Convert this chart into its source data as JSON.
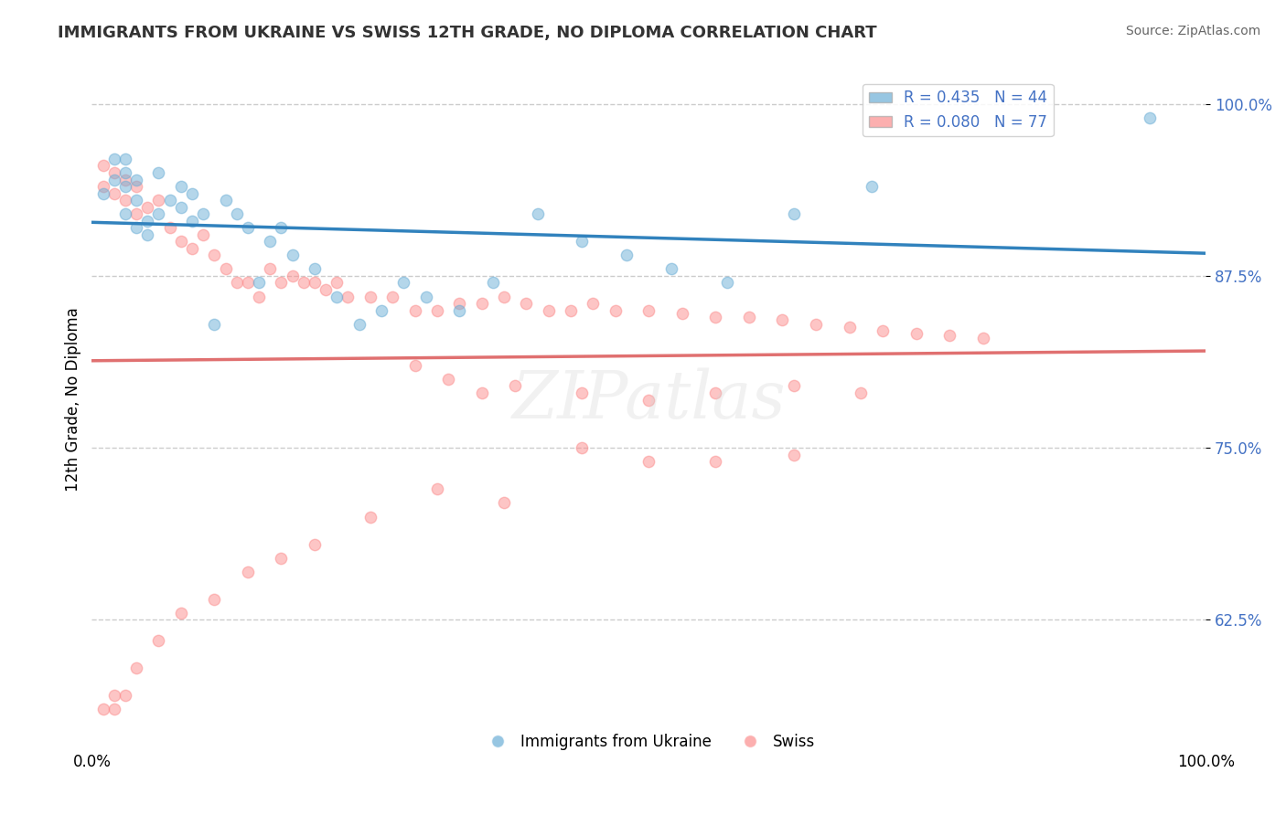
{
  "title": "IMMIGRANTS FROM UKRAINE VS SWISS 12TH GRADE, NO DIPLOMA CORRELATION CHART",
  "source": "Source: ZipAtlas.com",
  "ylabel": "12th Grade, No Diploma",
  "xlim": [
    0.0,
    1.0
  ],
  "ylim": [
    0.54,
    1.03
  ],
  "yticks": [
    0.625,
    0.75,
    0.875,
    1.0
  ],
  "ytick_labels": [
    "62.5%",
    "75.0%",
    "87.5%",
    "100.0%"
  ],
  "legend_ukraine": "Immigrants from Ukraine",
  "legend_swiss": "Swiss",
  "ukraine_R": 0.435,
  "ukraine_N": 44,
  "swiss_R": 0.08,
  "swiss_N": 77,
  "ukraine_color": "#6baed6",
  "swiss_color": "#fc8d8d",
  "ukraine_line_color": "#3182bd",
  "swiss_line_color": "#e07070",
  "dot_size": 80,
  "dot_alpha": 0.5,
  "ukraine_x": [
    0.01,
    0.02,
    0.02,
    0.03,
    0.03,
    0.03,
    0.03,
    0.04,
    0.04,
    0.04,
    0.05,
    0.05,
    0.06,
    0.06,
    0.07,
    0.08,
    0.08,
    0.09,
    0.09,
    0.1,
    0.11,
    0.12,
    0.13,
    0.14,
    0.15,
    0.16,
    0.17,
    0.18,
    0.2,
    0.22,
    0.24,
    0.26,
    0.28,
    0.3,
    0.33,
    0.36,
    0.4,
    0.44,
    0.48,
    0.52,
    0.57,
    0.63,
    0.7,
    0.95
  ],
  "ukraine_y": [
    0.935,
    0.945,
    0.96,
    0.95,
    0.96,
    0.94,
    0.92,
    0.93,
    0.945,
    0.91,
    0.915,
    0.905,
    0.92,
    0.95,
    0.93,
    0.925,
    0.94,
    0.915,
    0.935,
    0.92,
    0.84,
    0.93,
    0.92,
    0.91,
    0.87,
    0.9,
    0.91,
    0.89,
    0.88,
    0.86,
    0.84,
    0.85,
    0.87,
    0.86,
    0.85,
    0.87,
    0.92,
    0.9,
    0.89,
    0.88,
    0.87,
    0.92,
    0.94,
    0.99
  ],
  "swiss_x": [
    0.01,
    0.01,
    0.02,
    0.02,
    0.03,
    0.03,
    0.04,
    0.04,
    0.05,
    0.06,
    0.07,
    0.08,
    0.09,
    0.1,
    0.11,
    0.12,
    0.13,
    0.14,
    0.15,
    0.16,
    0.17,
    0.18,
    0.19,
    0.2,
    0.21,
    0.22,
    0.23,
    0.25,
    0.27,
    0.29,
    0.31,
    0.33,
    0.35,
    0.37,
    0.39,
    0.41,
    0.43,
    0.45,
    0.47,
    0.5,
    0.53,
    0.56,
    0.59,
    0.62,
    0.65,
    0.68,
    0.71,
    0.74,
    0.77,
    0.8,
    0.29,
    0.32,
    0.35,
    0.38,
    0.44,
    0.5,
    0.56,
    0.63,
    0.69,
    0.44,
    0.5,
    0.56,
    0.63,
    0.31,
    0.37,
    0.25,
    0.2,
    0.17,
    0.14,
    0.11,
    0.08,
    0.06,
    0.04,
    0.03,
    0.02,
    0.02,
    0.01
  ],
  "swiss_y": [
    0.955,
    0.94,
    0.95,
    0.935,
    0.945,
    0.93,
    0.94,
    0.92,
    0.925,
    0.93,
    0.91,
    0.9,
    0.895,
    0.905,
    0.89,
    0.88,
    0.87,
    0.87,
    0.86,
    0.88,
    0.87,
    0.875,
    0.87,
    0.87,
    0.865,
    0.87,
    0.86,
    0.86,
    0.86,
    0.85,
    0.85,
    0.855,
    0.855,
    0.86,
    0.855,
    0.85,
    0.85,
    0.855,
    0.85,
    0.85,
    0.848,
    0.845,
    0.845,
    0.843,
    0.84,
    0.838,
    0.835,
    0.833,
    0.832,
    0.83,
    0.81,
    0.8,
    0.79,
    0.795,
    0.79,
    0.785,
    0.79,
    0.795,
    0.79,
    0.75,
    0.74,
    0.74,
    0.745,
    0.72,
    0.71,
    0.7,
    0.68,
    0.67,
    0.66,
    0.64,
    0.63,
    0.61,
    0.59,
    0.57,
    0.56,
    0.57,
    0.56
  ]
}
